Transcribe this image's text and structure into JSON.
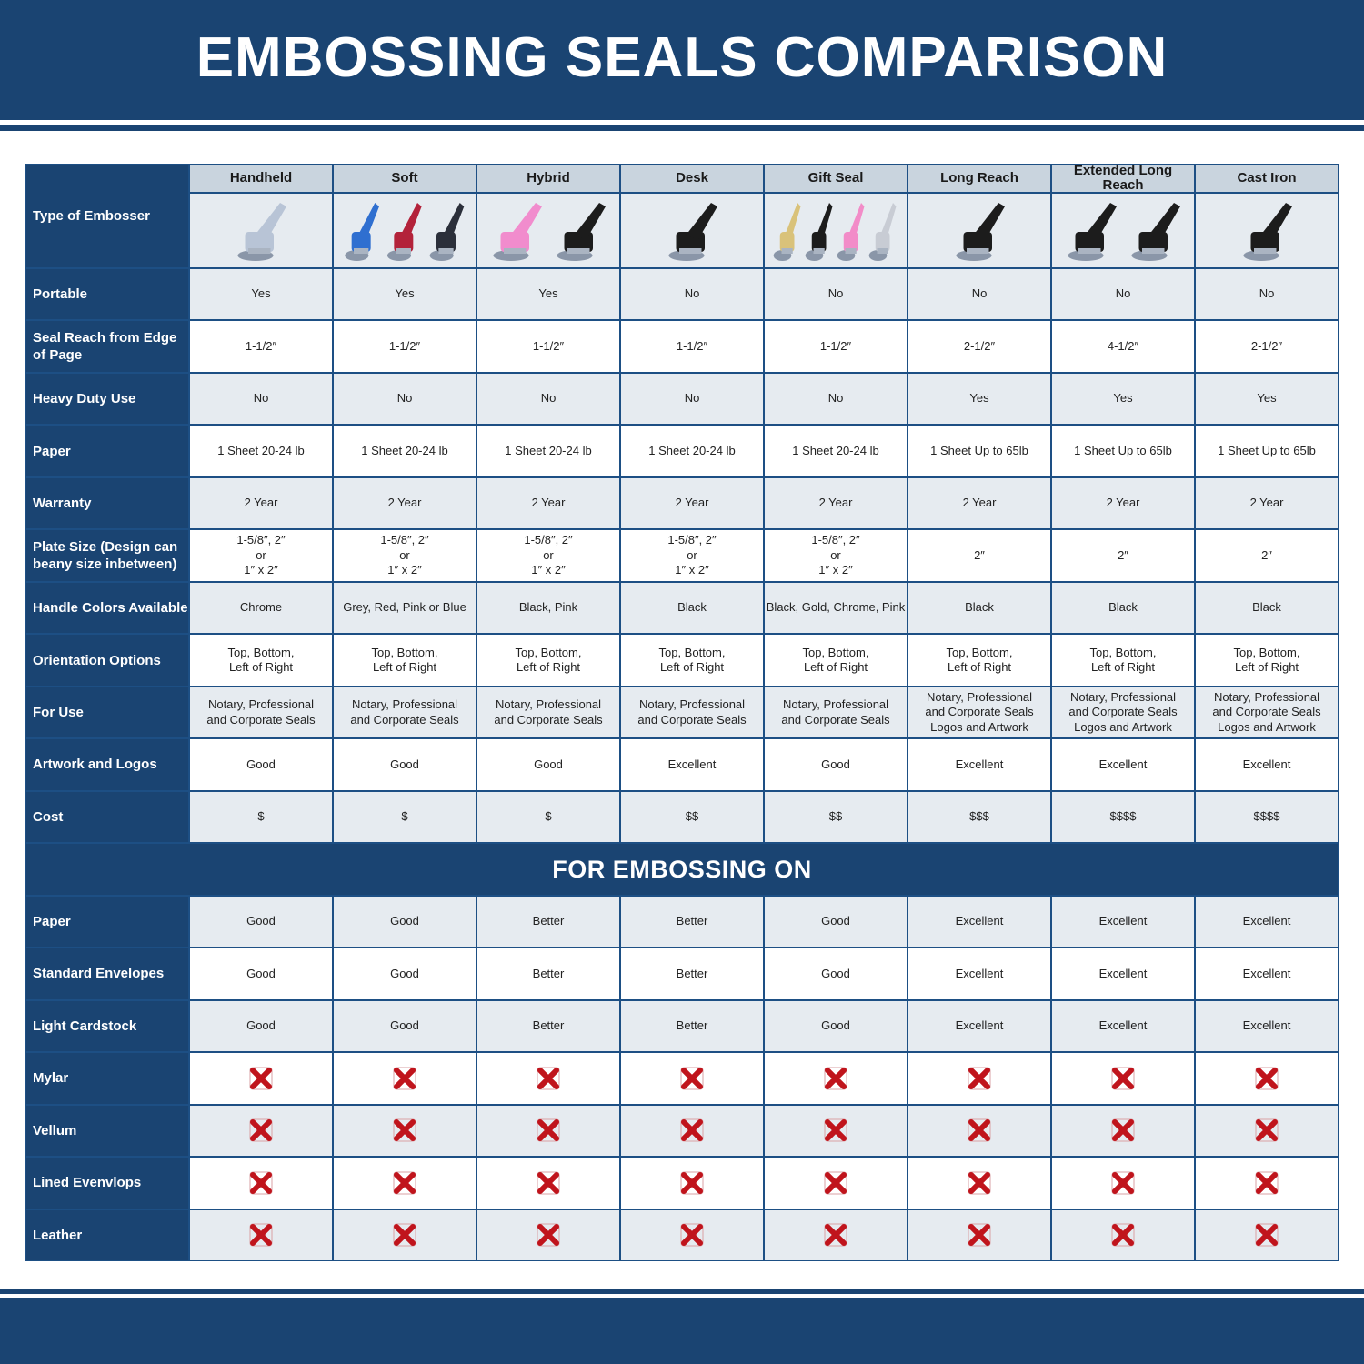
{
  "title": "EMBOSSING SEALS COMPARISON",
  "colors": {
    "brand_blue": "#1a4472",
    "row_light": "#e6ebf0",
    "header_grey": "#c9d4de",
    "x_red": "#c0141c"
  },
  "row_header_label": "Type of Embosser",
  "columns": [
    {
      "name": "Handheld",
      "image_colors": [
        "#b8c4d6"
      ]
    },
    {
      "name": "Soft",
      "image_colors": [
        "#2f6fd0",
        "#b3223a",
        "#2b2f3a"
      ]
    },
    {
      "name": "Hybrid",
      "image_colors": [
        "#f18ccd",
        "#1c1c1c"
      ]
    },
    {
      "name": "Desk",
      "image_colors": [
        "#1c1c1c"
      ]
    },
    {
      "name": "Gift Seal",
      "image_colors": [
        "#d9c27a",
        "#1c1c1c",
        "#f28cc8",
        "#c8ccd4"
      ]
    },
    {
      "name": "Long Reach",
      "image_colors": [
        "#1c1c1c"
      ]
    },
    {
      "name": "Extended Long Reach",
      "image_colors": [
        "#1c1c1c",
        "#1c1c1c"
      ]
    },
    {
      "name": "Cast Iron",
      "image_colors": [
        "#1c1c1c"
      ]
    }
  ],
  "rows": [
    {
      "label": "Portable",
      "values": [
        "Yes",
        "Yes",
        "Yes",
        "No",
        "No",
        "No",
        "No",
        "No"
      ]
    },
    {
      "label": "Seal Reach from Edge of Page",
      "values": [
        "1-1/2″",
        "1-1/2″",
        "1-1/2″",
        "1-1/2″",
        "1-1/2″",
        "2-1/2″",
        "4-1/2″",
        "2-1/2″"
      ]
    },
    {
      "label": "Heavy Duty Use",
      "values": [
        "No",
        "No",
        "No",
        "No",
        "No",
        "Yes",
        "Yes",
        "Yes"
      ]
    },
    {
      "label": "Paper",
      "values": [
        "1 Sheet 20-24 lb",
        "1 Sheet 20-24 lb",
        "1 Sheet 20-24 lb",
        "1 Sheet 20-24 lb",
        "1 Sheet 20-24 lb",
        "1 Sheet Up to 65lb",
        "1 Sheet Up to 65lb",
        "1 Sheet Up to 65lb"
      ]
    },
    {
      "label": "Warranty",
      "values": [
        "2 Year",
        "2 Year",
        "2 Year",
        "2 Year",
        "2 Year",
        "2 Year",
        "2 Year",
        "2 Year"
      ]
    },
    {
      "label": "Plate Size (Design can beany size inbetween)",
      "values": [
        "1-5/8″, 2″\nor\n1″ x 2″",
        "1-5/8″, 2″\nor\n1″ x 2″",
        "1-5/8″, 2″\nor\n1″ x 2″",
        "1-5/8″, 2″\nor\n1″ x 2″",
        "1-5/8″, 2″\nor\n1″ x 2″",
        "2″",
        "2″",
        "2″"
      ]
    },
    {
      "label": "Handle Colors Available",
      "values": [
        "Chrome",
        "Grey, Red, Pink or Blue",
        "Black, Pink",
        "Black",
        "Black, Gold, Chrome, Pink",
        "Black",
        "Black",
        "Black"
      ]
    },
    {
      "label": "Orientation Options",
      "values": [
        "Top, Bottom,\nLeft of Right",
        "Top, Bottom,\nLeft of Right",
        "Top, Bottom,\nLeft of Right",
        "Top, Bottom,\nLeft of Right",
        "Top, Bottom,\nLeft of Right",
        "Top, Bottom,\nLeft of Right",
        "Top, Bottom,\nLeft of Right",
        "Top, Bottom,\nLeft of Right"
      ]
    },
    {
      "label": "For Use",
      "values": [
        "Notary, Professional\nand Corporate Seals",
        "Notary, Professional\nand Corporate Seals",
        "Notary, Professional\nand Corporate Seals",
        "Notary, Professional\nand Corporate Seals",
        "Notary, Professional\nand Corporate Seals",
        "Notary, Professional\nand Corporate Seals\nLogos and Artwork",
        "Notary, Professional\nand Corporate Seals\nLogos and Artwork",
        "Notary, Professional\nand Corporate Seals\nLogos and Artwork"
      ]
    },
    {
      "label": "Artwork and Logos",
      "values": [
        "Good",
        "Good",
        "Good",
        "Excellent",
        "Good",
        "Excellent",
        "Excellent",
        "Excellent"
      ]
    },
    {
      "label": "Cost",
      "values": [
        "$",
        "$",
        "$",
        "$$",
        "$$",
        "$$$",
        "$$$$",
        "$$$$"
      ]
    }
  ],
  "section_title": "FOR EMBOSSING ON",
  "embossing_rows": [
    {
      "label": "Paper",
      "values": [
        "Good",
        "Good",
        "Better",
        "Better",
        "Good",
        "Excellent",
        "Excellent",
        "Excellent"
      ]
    },
    {
      "label": "Standard Envelopes",
      "values": [
        "Good",
        "Good",
        "Better",
        "Better",
        "Good",
        "Excellent",
        "Excellent",
        "Excellent"
      ]
    },
    {
      "label": "Light Cardstock",
      "values": [
        "Good",
        "Good",
        "Better",
        "Better",
        "Good",
        "Excellent",
        "Excellent",
        "Excellent"
      ]
    },
    {
      "label": "Mylar",
      "values": [
        "x-icon",
        "x-icon",
        "x-icon",
        "x-icon",
        "x-icon",
        "x-icon",
        "x-icon",
        "x-icon"
      ]
    },
    {
      "label": "Vellum",
      "values": [
        "x-icon",
        "x-icon",
        "x-icon",
        "x-icon",
        "x-icon",
        "x-icon",
        "x-icon",
        "x-icon"
      ]
    },
    {
      "label": "Lined Evenvlops",
      "values": [
        "x-icon",
        "x-icon",
        "x-icon",
        "x-icon",
        "x-icon",
        "x-icon",
        "x-icon",
        "x-icon"
      ]
    },
    {
      "label": "Leather",
      "values": [
        "x-icon",
        "x-icon",
        "x-icon",
        "x-icon",
        "x-icon",
        "x-icon",
        "x-icon",
        "x-icon"
      ]
    }
  ]
}
